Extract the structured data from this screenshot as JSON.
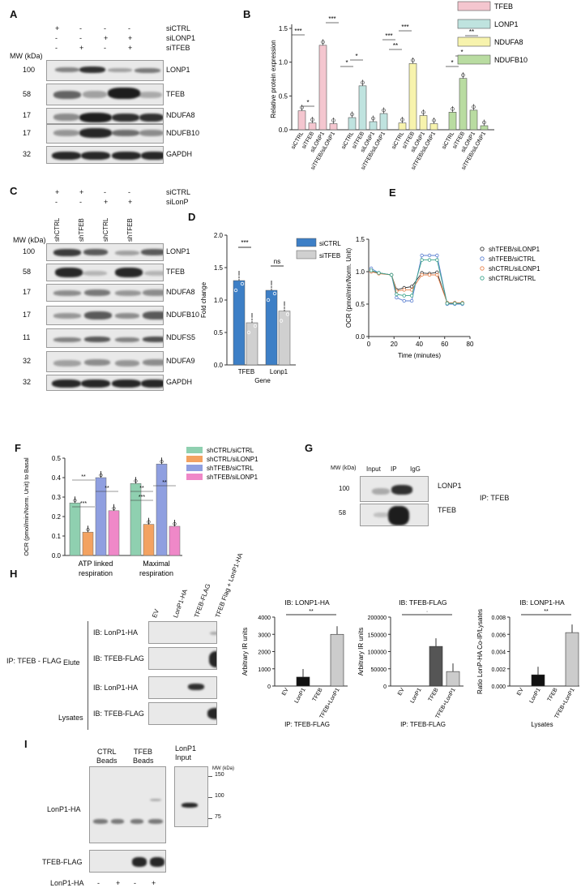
{
  "panels": {
    "A": "A",
    "B": "B",
    "C": "C",
    "D": "D",
    "E": "E",
    "F": "F",
    "G": "G",
    "H": "H",
    "I": "I"
  },
  "mw_label": "MW (kDa)",
  "panelA": {
    "rows": [
      {
        "name": "siCTRL",
        "signs": [
          "+",
          "-",
          "-",
          "-"
        ]
      },
      {
        "name": "siLONP1",
        "signs": [
          "-",
          "-",
          "+",
          "+"
        ]
      },
      {
        "name": "siTFEB",
        "signs": [
          "-",
          "+",
          "-",
          "+"
        ]
      }
    ],
    "blots": [
      {
        "mw": "100",
        "label": "LONP1"
      },
      {
        "mw": "58",
        "label": "TFEB"
      },
      {
        "mw": "17",
        "label": "NDUFA8"
      },
      {
        "mw": "17",
        "label": "NDUFB10"
      },
      {
        "mw": "32",
        "label": "GAPDH"
      }
    ]
  },
  "panelB": {
    "legend": [
      {
        "name": "TFEB",
        "color": "#f4c6cf"
      },
      {
        "name": "LONP1",
        "color": "#bfe3df"
      },
      {
        "name": "NDUFA8",
        "color": "#f7f3ad"
      },
      {
        "name": "NDUFB10",
        "color": "#b9dca1"
      }
    ],
    "ylabel": "Relative protein expression",
    "yticks": [
      "0.0",
      "0.5",
      "1.0",
      "1.5"
    ],
    "xlabels": [
      "siCTRL",
      "siTFEB",
      "siLONP1",
      "siTFEB/siLONP1"
    ],
    "sig": [
      "***",
      "*",
      "***",
      "*",
      "*",
      "***",
      "**",
      "***",
      "*",
      "*",
      "**"
    ]
  },
  "panelC": {
    "rows": [
      {
        "name": "siCTRL",
        "signs": [
          "+",
          "+",
          "-",
          "-"
        ]
      },
      {
        "name": "siLonP",
        "signs": [
          "-",
          "-",
          "+",
          "+"
        ]
      }
    ],
    "lanes": [
      "shCTRL",
      "shTFEB",
      "shCTRL",
      "shTFEB"
    ],
    "blots": [
      {
        "mw": "100",
        "label": "LONP1"
      },
      {
        "mw": "58",
        "label": "TFEB"
      },
      {
        "mw": "17",
        "label": "NDUFA8"
      },
      {
        "mw": "17",
        "label": "NDUFB10"
      },
      {
        "mw": "11",
        "label": "NDUFS5"
      },
      {
        "mw": "32",
        "label": "NDUFA9"
      },
      {
        "mw": "32",
        "label": "GAPDH"
      }
    ]
  },
  "panelD": {
    "ylabel": "Fold change",
    "xlabel": "Gene",
    "yticks": [
      "0.0",
      "0.5",
      "1.0",
      "1.5",
      "2.0"
    ],
    "legend": [
      {
        "name": "siCTRL",
        "color": "#3d7fc6"
      },
      {
        "name": "siTFEB",
        "color": "#d0d0d0"
      }
    ],
    "sig": [
      "***",
      "ns"
    ]
  },
  "panelE": {
    "ylabel": "OCR (pmol/min/Norm. Unit)",
    "xlabel": "Time (minutes)",
    "yticks": [
      "0.0",
      "0.5",
      "1.0",
      "1.5"
    ],
    "xticks": [
      "0",
      "20",
      "40",
      "60",
      "80"
    ],
    "legend": [
      {
        "name": "shTFEB/siLONP1",
        "color": "#333333"
      },
      {
        "name": "shTFEB/siCTRL",
        "color": "#5a7fd0"
      },
      {
        "name": "shCTRL/siLONP1",
        "color": "#e6804a"
      },
      {
        "name": "shCTRL/siCTRL",
        "color": "#3aa38a"
      }
    ]
  },
  "panelF": {
    "ylabel": "OCR (pmol/min/Norm. Unit) to Basal",
    "yticks": [
      "0.0",
      "0.1",
      "0.2",
      "0.3",
      "0.4",
      "0.5"
    ],
    "groups": [
      "ATP linked respiration",
      "Maximal respiration"
    ],
    "legend": [
      {
        "name": "shCTRL/siCTRL",
        "color": "#8fd0b0"
      },
      {
        "name": "shCTRL/siLONP1",
        "color": "#f3a261"
      },
      {
        "name": "shTFEB/siCTRL",
        "color": "#8f9fe0"
      },
      {
        "name": "shTFEB/siLONP1",
        "color": "#ef88c8"
      }
    ],
    "sig": [
      "**",
      "**",
      "***",
      "**",
      "**",
      "***"
    ]
  },
  "panelG": {
    "lanes": [
      "Input",
      "IP",
      "IgG"
    ],
    "blots": [
      {
        "mw": "100",
        "label": "LONP1"
      },
      {
        "mw": "58",
        "label": "TFEB"
      }
    ],
    "ip": "IP: TFEB"
  },
  "panelH": {
    "lanes": [
      "EV",
      "LonP1-HA",
      "TFEB-FLAG",
      "TFEB Flag + LonP1-HA"
    ],
    "ip": "IP: TFEB - FLAG",
    "sections": [
      "Elute",
      "Lysates"
    ],
    "blots": [
      "IB: LonP1-HA",
      "IB: TFEB-FLAG",
      "IB: LonP1-HA",
      "IB: TFEB-FLAG"
    ],
    "charts": [
      {
        "title": "IB: LONP1-HA",
        "ylabel": "Arbitrary IR units",
        "yticks": [
          "0",
          "1000",
          "2000",
          "3000",
          "4000"
        ],
        "xlabels": [
          "EV",
          "LonP1",
          "TFEB",
          "TFEB+LonP1"
        ],
        "footer": "IP: TFEB-FLAG",
        "sig": "**"
      },
      {
        "title": "IB: TFEB-FLAG",
        "ylabel": "Arbitrary IR units",
        "yticks": [
          "0",
          "50000",
          "100000",
          "150000",
          "200000"
        ],
        "xlabels": [
          "EV",
          "LonP1",
          "TFEB",
          "TFEB+LonP1"
        ],
        "footer": "IP: TFEB-FLAG",
        "sig": "·"
      },
      {
        "title": "IB: LONP1-HA",
        "ylabel": "Ratio LonP-HA Co-IP/Lysates",
        "yticks": [
          "0.000",
          "0.002",
          "0.004",
          "0.006",
          "0.008"
        ],
        "xlabels": [
          "EV",
          "LonP1",
          "TFEB",
          "TFEB+LonP1"
        ],
        "footer": "Lysates",
        "sig": "**"
      }
    ]
  },
  "panelI": {
    "groups": [
      "CTRL",
      "TFEB"
    ],
    "beads": "Beads",
    "input": [
      "LonP1",
      "Input"
    ],
    "mw": [
      "150",
      "100",
      "75"
    ],
    "rows": [
      "LonP1-HA",
      "TFEB-FLAG"
    ],
    "bottom": {
      "label": "LonP1-HA",
      "signs": [
        "-",
        "+",
        "-",
        "+"
      ]
    }
  },
  "chart_data": [
    {
      "type": "bar",
      "ylim": [
        0,
        1.5
      ],
      "categories": [
        "siCTRL",
        "siTFEB",
        "siLONP1",
        "siTFEB/siLONP1"
      ],
      "series": [
        {
          "name": "TFEB",
          "values": [
            0.28,
            0.1,
            1.25,
            0.09
          ]
        },
        {
          "name": "LONP1",
          "values": [
            0.18,
            0.65,
            0.12,
            0.24
          ]
        },
        {
          "name": "NDUFA8",
          "values": [
            0.1,
            0.98,
            0.21,
            0.09
          ]
        },
        {
          "name": "NDUFB10",
          "values": [
            0.26,
            0.76,
            0.29,
            0.06
          ]
        }
      ]
    },
    {
      "type": "bar",
      "ylim": [
        0,
        2.0
      ],
      "categories": [
        "TFEB",
        "Lonp1"
      ],
      "series": [
        {
          "name": "siCTRL",
          "values": [
            1.3,
            1.15
          ]
        },
        {
          "name": "siTFEB",
          "values": [
            0.65,
            0.83
          ]
        }
      ]
    },
    {
      "type": "line",
      "ylim": [
        0,
        1.5
      ],
      "xlim": [
        0,
        80
      ],
      "x": [
        2,
        8,
        18,
        22,
        28,
        34,
        42,
        48,
        54,
        62,
        68,
        74
      ],
      "series": [
        {
          "name": "shTFEB/siLONP1",
          "values": [
            1.0,
            0.98,
            0.95,
            0.72,
            0.75,
            0.77,
            0.98,
            0.97,
            0.99,
            0.52,
            0.52,
            0.52
          ]
        },
        {
          "name": "shTFEB/siCTRL",
          "values": [
            1.05,
            0.98,
            0.95,
            0.6,
            0.55,
            0.55,
            1.25,
            1.25,
            1.25,
            0.5,
            0.5,
            0.5
          ]
        },
        {
          "name": "shCTRL/siLONP1",
          "values": [
            1.0,
            0.97,
            0.95,
            0.7,
            0.72,
            0.72,
            0.95,
            0.95,
            0.95,
            0.52,
            0.52,
            0.52
          ]
        },
        {
          "name": "shCTRL/siCTRL",
          "values": [
            1.02,
            0.98,
            0.95,
            0.65,
            0.63,
            0.63,
            1.18,
            1.18,
            1.18,
            0.51,
            0.51,
            0.51
          ]
        }
      ]
    },
    {
      "type": "bar",
      "ylim": [
        0,
        0.5
      ],
      "categories": [
        "ATP linked respiration",
        "Maximal respiration"
      ],
      "series": [
        {
          "name": "shCTRL/siCTRL",
          "values": [
            0.27,
            0.37
          ]
        },
        {
          "name": "shCTRL/siLONP1",
          "values": [
            0.12,
            0.16
          ]
        },
        {
          "name": "shTFEB/siCTRL",
          "values": [
            0.4,
            0.47
          ]
        },
        {
          "name": "shTFEB/siLONP1",
          "values": [
            0.23,
            0.15
          ]
        }
      ]
    },
    {
      "type": "bar",
      "ylim": [
        0,
        4000
      ],
      "categories": [
        "EV",
        "LonP1",
        "TFEB",
        "TFEB+LonP1"
      ],
      "values": [
        0,
        520,
        0,
        3000
      ]
    },
    {
      "type": "bar",
      "ylim": [
        0,
        200000
      ],
      "categories": [
        "EV",
        "LonP1",
        "TFEB",
        "TFEB+LonP1"
      ],
      "values": [
        0,
        0,
        115000,
        42000
      ]
    },
    {
      "type": "bar",
      "ylim": [
        0,
        0.008
      ],
      "categories": [
        "EV",
        "LonP1",
        "TFEB",
        "TFEB+LonP1"
      ],
      "values": [
        0,
        0.0013,
        0,
        0.0062
      ]
    }
  ]
}
